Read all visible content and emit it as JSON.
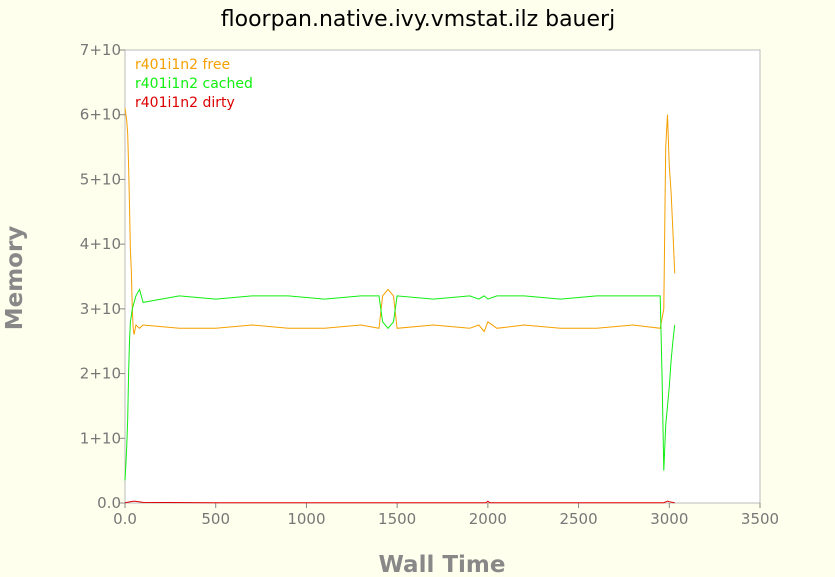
{
  "chart_data": {
    "type": "line",
    "title": "floorpan.native.ivy.vmstat.ilz bauerj",
    "xlabel": "Wall Time",
    "ylabel": "Memory",
    "xlim": [
      0,
      3500
    ],
    "ylim": [
      0,
      7
    ],
    "x_ticks": [
      0,
      500,
      1000,
      1500,
      2000,
      2500,
      3000,
      3500
    ],
    "x_tick_labels": [
      "0.0",
      "500",
      "1000",
      "1500",
      "2000",
      "2500",
      "3000",
      "3500"
    ],
    "y_ticks": [
      0,
      1,
      2,
      3,
      4,
      5,
      6,
      7
    ],
    "y_tick_labels": [
      "0.0",
      "1+10",
      "2+10",
      "3+10",
      "4+10",
      "5+10",
      "6+10",
      "7+10"
    ],
    "legend_position": "top-left",
    "grid": false,
    "series": [
      {
        "name": "r401i1n2 free",
        "color": "#f5a000",
        "x": [
          0,
          5,
          10,
          15,
          20,
          25,
          30,
          35,
          40,
          45,
          50,
          60,
          80,
          100,
          300,
          500,
          700,
          900,
          1100,
          1300,
          1400,
          1420,
          1450,
          1480,
          1500,
          1700,
          1900,
          1950,
          1980,
          2000,
          2050,
          2200,
          2400,
          2600,
          2800,
          2950,
          2970,
          2980,
          2990,
          3000,
          3010,
          3020,
          3030
        ],
        "y": [
          6.1,
          6.0,
          5.9,
          5.7,
          5.2,
          4.6,
          3.9,
          3.6,
          3.0,
          2.7,
          2.6,
          2.75,
          2.7,
          2.75,
          2.7,
          2.7,
          2.75,
          2.7,
          2.7,
          2.75,
          2.7,
          3.2,
          3.3,
          3.2,
          2.7,
          2.75,
          2.7,
          2.75,
          2.65,
          2.8,
          2.7,
          2.75,
          2.7,
          2.7,
          2.75,
          2.7,
          3.0,
          5.5,
          6.0,
          5.2,
          4.8,
          4.2,
          3.55
        ]
      },
      {
        "name": "r401i1n2 cached",
        "color": "#11ee11",
        "x": [
          0,
          5,
          10,
          15,
          20,
          25,
          30,
          40,
          60,
          80,
          100,
          300,
          500,
          700,
          900,
          1100,
          1300,
          1400,
          1420,
          1450,
          1480,
          1500,
          1700,
          1900,
          1950,
          1980,
          2000,
          2050,
          2200,
          2400,
          2600,
          2800,
          2950,
          2960,
          2970,
          2980,
          2990,
          3000,
          3010,
          3020,
          3030
        ],
        "y": [
          0.35,
          0.6,
          0.9,
          1.3,
          2.0,
          2.5,
          2.8,
          3.0,
          3.2,
          3.3,
          3.1,
          3.2,
          3.15,
          3.2,
          3.2,
          3.15,
          3.2,
          3.2,
          2.8,
          2.7,
          2.8,
          3.2,
          3.15,
          3.2,
          3.15,
          3.2,
          3.15,
          3.2,
          3.2,
          3.15,
          3.2,
          3.2,
          3.2,
          2.0,
          0.5,
          1.2,
          1.5,
          1.8,
          2.2,
          2.5,
          2.75
        ]
      },
      {
        "name": "r401i1n2 dirty",
        "color": "#dd0000",
        "x": [
          0,
          30,
          50,
          100,
          500,
          1000,
          1500,
          1990,
          2000,
          2010,
          2500,
          2970,
          2990,
          3000,
          3030
        ],
        "y": [
          0.005,
          0.02,
          0.03,
          0.01,
          0.005,
          0.005,
          0.005,
          0.005,
          0.03,
          0.005,
          0.005,
          0.005,
          0.03,
          0.02,
          0.005
        ]
      }
    ]
  }
}
